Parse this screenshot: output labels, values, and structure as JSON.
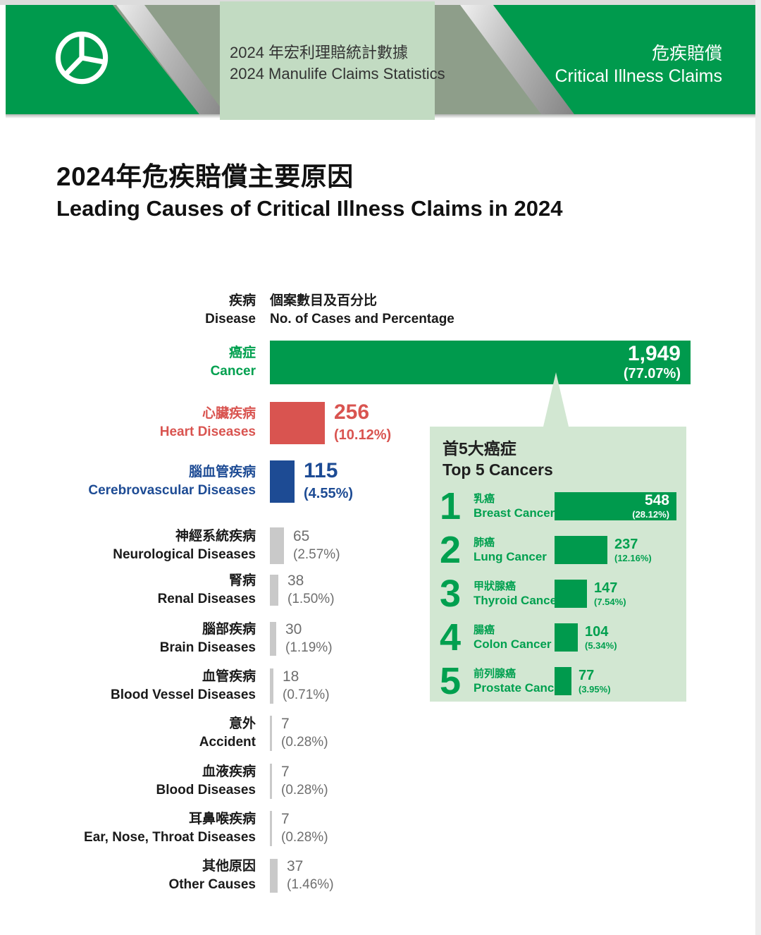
{
  "header": {
    "logo_icon": "pie-chart-icon",
    "center_title_zh": "2024 年宏利理賠統計數據",
    "center_title_en": "2024 Manulife Claims Statistics",
    "right_title_zh": "危疾賠償",
    "right_title_en": "Critical Illness Claims"
  },
  "page_title": {
    "zh": "2024年危疾賠償主要原因",
    "en": "Leading Causes of Critical Illness Claims in 2024"
  },
  "columns": {
    "disease_zh": "疾病",
    "disease_en": "Disease",
    "cases_zh": "個案數目及百分比",
    "cases_en": "No. of Cases and Percentage"
  },
  "colors": {
    "green": "#009a4d",
    "green_text": "#00a04f",
    "light_green_panel": "#d2e7d2",
    "header_mid_panel": "#c2dbc2",
    "sage": "#8e9e8a",
    "red": "#d95450",
    "blue": "#1d4b94",
    "gray_bar": "#c9c9c9",
    "gray_text": "#6e6e6e"
  },
  "chart_data": {
    "type": "bar",
    "orientation": "horizontal",
    "title": "Leading Causes of Critical Illness Claims in 2024",
    "unit": "cases",
    "xlim": [
      0,
      77.07
    ],
    "rows": [
      {
        "label_zh": "癌症",
        "label_en": "Cancer",
        "value": 1949,
        "value_display": "1,949",
        "pct": 77.07,
        "pct_display": "(77.07%)",
        "color": "green",
        "value_style": "inside"
      },
      {
        "label_zh": "心臟疾病",
        "label_en": "Heart Diseases",
        "value": 256,
        "value_display": "256",
        "pct": 10.12,
        "pct_display": "(10.12%)",
        "color": "red",
        "value_style": "side-big"
      },
      {
        "label_zh": "腦血管疾病",
        "label_en": "Cerebrovascular Diseases",
        "value": 115,
        "value_display": "115",
        "pct": 4.55,
        "pct_display": "(4.55%)",
        "color": "blue",
        "value_style": "side-big"
      },
      {
        "label_zh": "神經系統疾病",
        "label_en": "Neurological Diseases",
        "value": 65,
        "value_display": "65",
        "pct": 2.57,
        "pct_display": "(2.57%)",
        "color": "gray",
        "value_style": "side-gray"
      },
      {
        "label_zh": "腎病",
        "label_en": "Renal Diseases",
        "value": 38,
        "value_display": "38",
        "pct": 1.5,
        "pct_display": "(1.50%)",
        "color": "gray",
        "value_style": "side-gray"
      },
      {
        "label_zh": "腦部疾病",
        "label_en": "Brain Diseases",
        "value": 30,
        "value_display": "30",
        "pct": 1.19,
        "pct_display": "(1.19%)",
        "color": "gray",
        "value_style": "side-gray"
      },
      {
        "label_zh": "血管疾病",
        "label_en": "Blood Vessel Diseases",
        "value": 18,
        "value_display": "18",
        "pct": 0.71,
        "pct_display": "(0.71%)",
        "color": "gray",
        "value_style": "side-gray"
      },
      {
        "label_zh": "意外",
        "label_en": "Accident",
        "value": 7,
        "value_display": "7",
        "pct": 0.28,
        "pct_display": "(0.28%)",
        "color": "gray",
        "value_style": "side-gray"
      },
      {
        "label_zh": "血液疾病",
        "label_en": "Blood Diseases",
        "value": 7,
        "value_display": "7",
        "pct": 0.28,
        "pct_display": "(0.28%)",
        "color": "gray",
        "value_style": "side-gray"
      },
      {
        "label_zh": "耳鼻喉疾病",
        "label_en": "Ear, Nose, Throat Diseases",
        "value": 7,
        "value_display": "7",
        "pct": 0.28,
        "pct_display": "(0.28%)",
        "color": "gray",
        "value_style": "side-gray"
      },
      {
        "label_zh": "其他原因",
        "label_en": "Other Causes",
        "value": 37,
        "value_display": "37",
        "pct": 1.46,
        "pct_display": "(1.46%)",
        "color": "gray",
        "value_style": "side-gray"
      }
    ],
    "top5": {
      "title_zh": "首5大癌症",
      "title_en": "Top 5 Cancers",
      "rows": [
        {
          "rank": "1",
          "label_zh": "乳癌",
          "label_en": "Breast Cancer",
          "value": 548,
          "value_display": "548",
          "pct_display": "(28.12%)",
          "value_style": "inside"
        },
        {
          "rank": "2",
          "label_zh": "肺癌",
          "label_en": "Lung Cancer",
          "value": 237,
          "value_display": "237",
          "pct_display": "(12.16%)",
          "value_style": "outside"
        },
        {
          "rank": "3",
          "label_zh": "甲狀腺癌",
          "label_en": "Thyroid Cancer",
          "value": 147,
          "value_display": "147",
          "pct_display": "(7.54%)",
          "value_style": "outside"
        },
        {
          "rank": "4",
          "label_zh": "腸癌",
          "label_en": "Colon Cancer",
          "value": 104,
          "value_display": "104",
          "pct_display": "(5.34%)",
          "value_style": "outside"
        },
        {
          "rank": "5",
          "label_zh": "前列腺癌",
          "label_en": "Prostate Cancer",
          "value": 77,
          "value_display": "77",
          "pct_display": "(3.95%)",
          "value_style": "outside"
        }
      ]
    }
  }
}
